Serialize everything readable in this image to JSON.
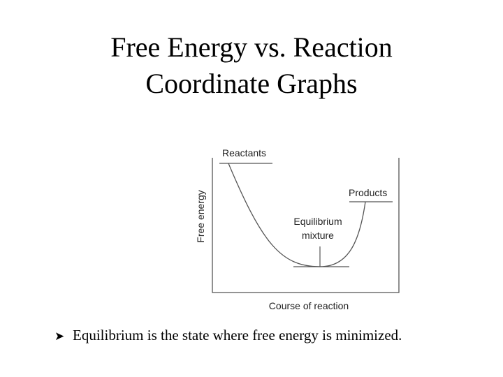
{
  "slide": {
    "title_line1": "Free Energy vs. Reaction",
    "title_line2": "Coordinate Graphs",
    "bullet_text": "Equilibrium is the state where free energy is minimized.",
    "bullet_marker_icon": "arrow-right-icon"
  },
  "diagram": {
    "ylabel": "Free energy",
    "xlabel": "Course of reaction",
    "labels": {
      "reactants": "Reactants",
      "products": "Products",
      "equilibrium_line1": "Equilibrium",
      "equilibrium_line2": "mixture"
    },
    "line_color": "#555555"
  }
}
